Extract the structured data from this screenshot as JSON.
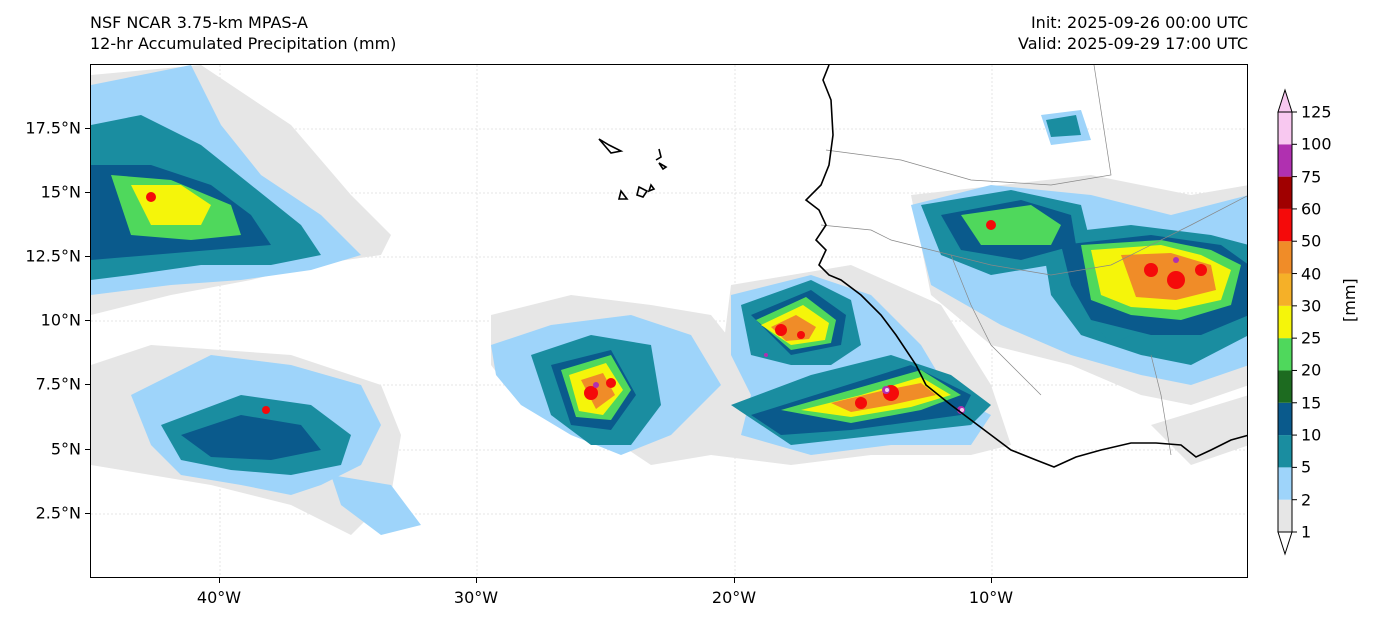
{
  "header": {
    "title_line1": "NSF NCAR 3.75-km MPAS-A",
    "title_line2": "12-hr Accumulated Precipitation (mm)",
    "init": "Init: 2025-09-26 00:00 UTC",
    "valid": "Valid: 2025-09-29 17:00 UTC"
  },
  "axes": {
    "lat_labels": [
      "17.5°N",
      "15°N",
      "12.5°N",
      "10°N",
      "7.5°N",
      "5°N",
      "2.5°N"
    ],
    "lon_labels": [
      "40°W",
      "30°W",
      "20°W",
      "10°W"
    ]
  },
  "colorbar": {
    "unit": "[mm]",
    "levels": [
      "1",
      "2",
      "5",
      "10",
      "15",
      "20",
      "25",
      "30",
      "40",
      "50",
      "60",
      "75",
      "100",
      "125"
    ],
    "colors": [
      "#e6e6e6",
      "#9ed4fa",
      "#1a8da0",
      "#0a5a8c",
      "#1d6b20",
      "#4fd85c",
      "#f5f50a",
      "#f5b028",
      "#f08c28",
      "#f50a0a",
      "#a00000",
      "#b030b0",
      "#f8c8f0"
    ]
  },
  "layers": {
    "coastline_color": "#000000",
    "border_color": "#888888",
    "grid_color": "#d8d8d8"
  }
}
